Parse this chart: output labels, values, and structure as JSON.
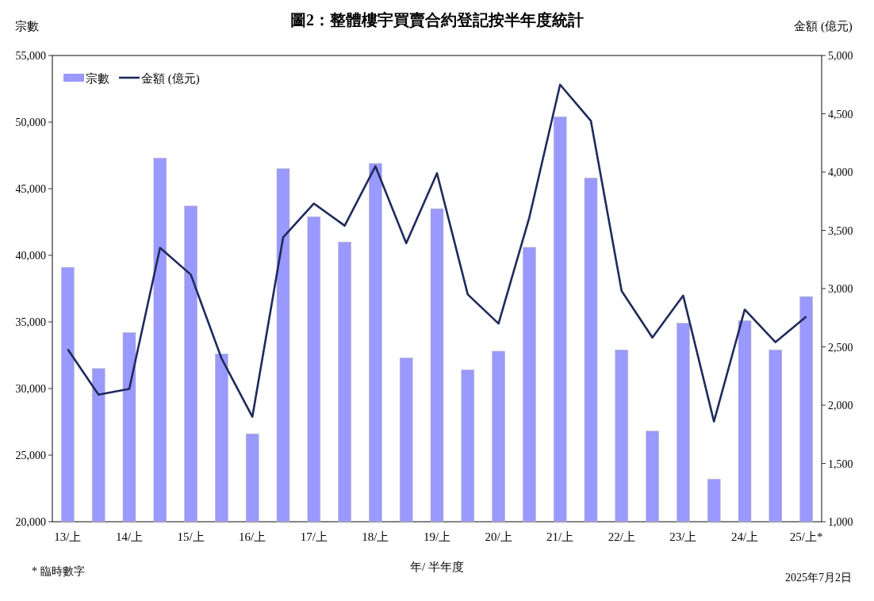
{
  "chart_data": {
    "type": "bar",
    "title": "圖2：整體樓宇買賣合約登記按半年度統計",
    "xlabel": "年/ 半年度",
    "ylabel": "宗數",
    "y2label": "金額 (億元)",
    "categories": [
      "13/上",
      null,
      "14/上",
      null,
      "15/上",
      null,
      "16/上",
      null,
      "17/上",
      null,
      "18/上",
      null,
      "19/上",
      null,
      "20/上",
      null,
      "21/上",
      null,
      "22/上",
      null,
      "23/上",
      null,
      "24/上",
      null,
      "25/上*"
    ],
    "series": [
      {
        "name": "宗數",
        "color": "#9999ff",
        "values": [
          39100,
          31500,
          34200,
          47300,
          43700,
          32600,
          26600,
          46500,
          42900,
          41000,
          46900,
          32300,
          43500,
          31400,
          32800,
          40600,
          50400,
          45800,
          32900,
          26800,
          34900,
          23200,
          35100,
          32900,
          36900
        ]
      },
      {
        "name": "金額 (億元)",
        "type": "line",
        "axis": "y2",
        "color": "#1f2a5c",
        "values": [
          2480,
          2090,
          2140,
          3350,
          3120,
          2400,
          1900,
          3440,
          3730,
          3540,
          4050,
          3390,
          3990,
          2950,
          2700,
          3610,
          4750,
          4440,
          2980,
          2580,
          2940,
          1860,
          2820,
          2540,
          2760
        ]
      }
    ],
    "ylim": [
      20000,
      55000
    ],
    "yticks": [
      {
        "value": 20000,
        "label": "20,000"
      },
      {
        "value": 25000,
        "label": "25,000"
      },
      {
        "value": 30000,
        "label": "30,000"
      },
      {
        "value": 35000,
        "label": "35,000"
      },
      {
        "value": 40000,
        "label": "40,000"
      },
      {
        "value": 45000,
        "label": "45,000"
      },
      {
        "value": 50000,
        "label": "50,000"
      },
      {
        "value": 55000,
        "label": "55,000"
      }
    ],
    "y2lim": [
      1000,
      5000
    ],
    "y2ticks": [
      {
        "value": 1000,
        "label": "1,000"
      },
      {
        "value": 1500,
        "label": "1,500"
      },
      {
        "value": 2000,
        "label": "2,000"
      },
      {
        "value": 2500,
        "label": "2,500"
      },
      {
        "value": 3000,
        "label": "3,000"
      },
      {
        "value": 3500,
        "label": "3,500"
      },
      {
        "value": 4000,
        "label": "4,000"
      },
      {
        "value": 4500,
        "label": "4,500"
      },
      {
        "value": 5000,
        "label": "5,000"
      }
    ],
    "legend": "top left",
    "annotations": [
      "* 臨時數字",
      "2025年7月2日"
    ]
  }
}
